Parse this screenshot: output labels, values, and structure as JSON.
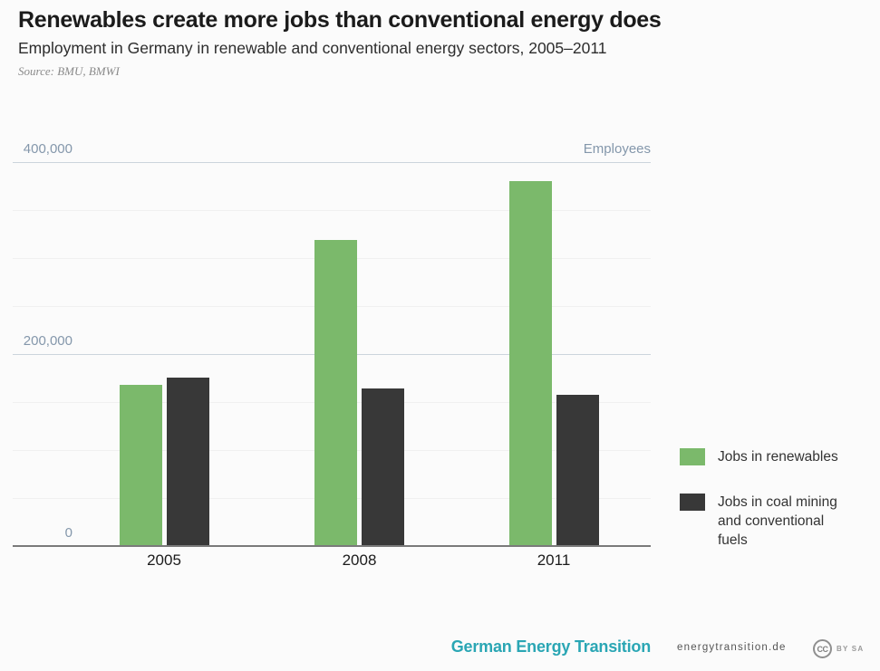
{
  "header": {
    "title": "Renewables create more jobs than conventional energy does",
    "subtitle": "Employment in Germany in renewable and conventional energy sectors, 2005–2011",
    "source": "Source: BMU, BMWI"
  },
  "chart_data": {
    "type": "bar",
    "categories": [
      "2005",
      "2008",
      "2011"
    ],
    "series": [
      {
        "name": "Jobs in renewables",
        "color": "#7bb96b",
        "values": [
          168000,
          319000,
          380000
        ]
      },
      {
        "name": "Jobs in coal mining and conventional fuels",
        "color": "#383838",
        "values": [
          175000,
          164000,
          157000
        ]
      }
    ],
    "title": "Renewables create more jobs than conventional energy does",
    "xlabel": "",
    "ylabel": "Employees",
    "ylim": [
      0,
      400000
    ],
    "yticks": [
      {
        "value": 0,
        "label": "0"
      },
      {
        "value": 200000,
        "label": "200,000"
      },
      {
        "value": 400000,
        "label": "400,000"
      }
    ],
    "minor_grid_step": 50000,
    "grid": true,
    "legend_position": "right"
  },
  "legend": {
    "items": [
      {
        "label": "Jobs in renewables",
        "color": "#7bb96b"
      },
      {
        "label": "Jobs in coal mining and conventional fuels",
        "color": "#383838"
      }
    ]
  },
  "footer": {
    "brand": "German Energy Transition",
    "site": "energytransition.de",
    "cc_icon": "CC",
    "cc_terms": "BY SA"
  },
  "colors": {
    "background": "#fbfbfb",
    "renewables_green": "#7bb96b",
    "conventional_dark": "#383838",
    "axis_text": "#8497ab",
    "major_grid": "#ccd4dc",
    "minor_grid": "#f0f0f0",
    "brand_teal": "#2aa6b4"
  }
}
